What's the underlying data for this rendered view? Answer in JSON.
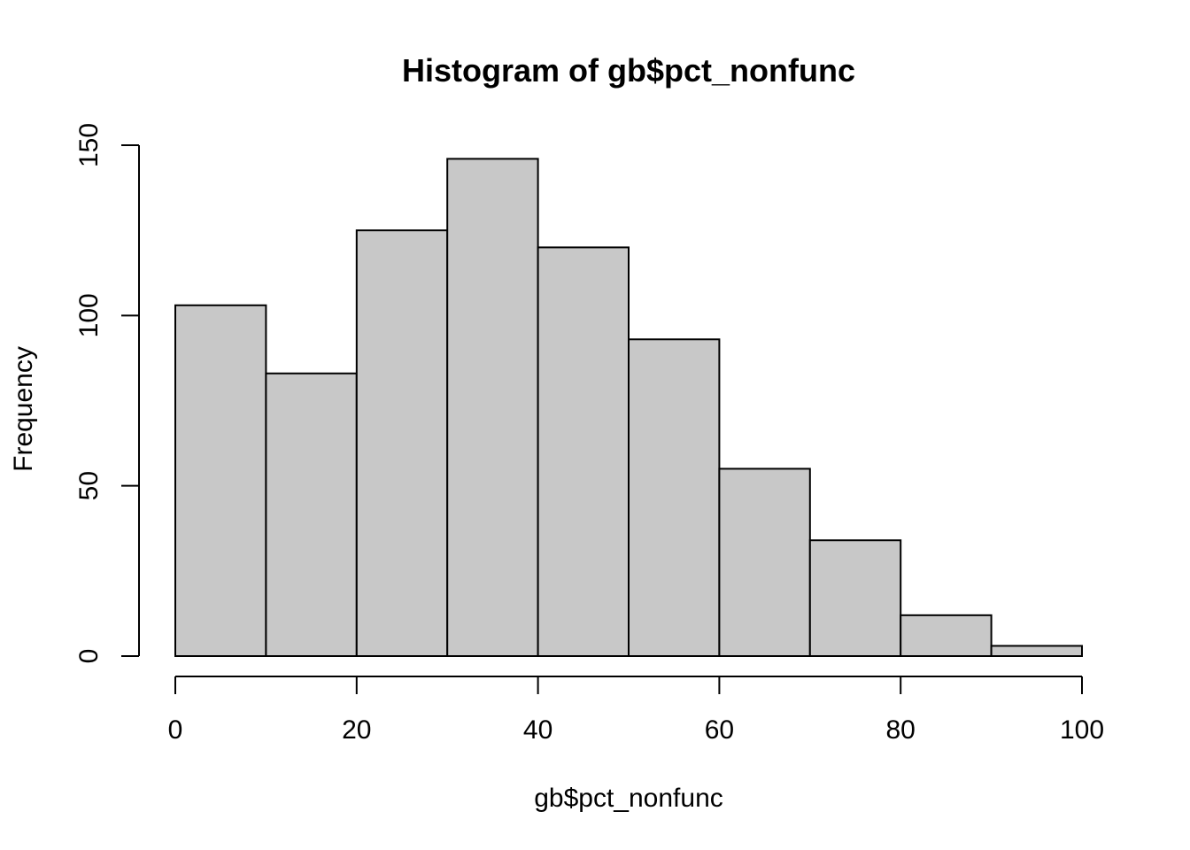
{
  "chart_data": {
    "type": "bar",
    "title": "Histogram of gb$pct_nonfunc",
    "xlabel": "gb$pct_nonfunc",
    "ylabel": "Frequency",
    "bins": [
      {
        "start": 0,
        "end": 10,
        "count": 103
      },
      {
        "start": 10,
        "end": 20,
        "count": 83
      },
      {
        "start": 20,
        "end": 30,
        "count": 125
      },
      {
        "start": 30,
        "end": 40,
        "count": 146
      },
      {
        "start": 40,
        "end": 50,
        "count": 120
      },
      {
        "start": 50,
        "end": 60,
        "count": 93
      },
      {
        "start": 60,
        "end": 70,
        "count": 55
      },
      {
        "start": 70,
        "end": 80,
        "count": 34
      },
      {
        "start": 80,
        "end": 90,
        "count": 12
      },
      {
        "start": 90,
        "end": 100,
        "count": 3
      }
    ],
    "x_ticks": [
      "0",
      "20",
      "40",
      "60",
      "80",
      "100"
    ],
    "y_ticks": [
      "0",
      "50",
      "100",
      "150"
    ],
    "xlim": [
      0,
      100
    ],
    "ylim": [
      0,
      150
    ],
    "bar_color": "#c8c8c8",
    "edge_color": "#000000",
    "grid": false,
    "legend": false
  }
}
